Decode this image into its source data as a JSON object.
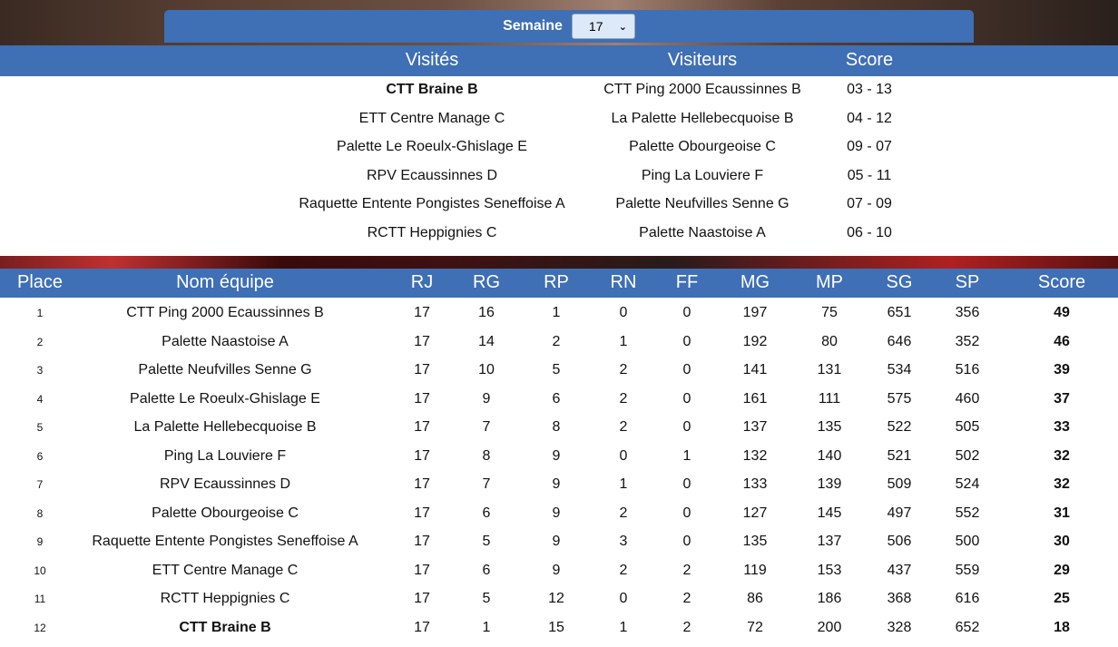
{
  "week": {
    "label": "Semaine",
    "selected": "17"
  },
  "matches": {
    "headers": {
      "home": "Visités",
      "away": "Visiteurs",
      "score": "Score"
    },
    "rows": [
      {
        "home": "CTT Braine B",
        "away": "CTT Ping 2000 Ecaussinnes B",
        "score": "03 - 13",
        "highlight": true
      },
      {
        "home": "ETT Centre Manage C",
        "away": "La Palette Hellebecquoise B",
        "score": "04 - 12"
      },
      {
        "home": "Palette Le Roeulx-Ghislage E",
        "away": "Palette Obourgeoise C",
        "score": "09 - 07"
      },
      {
        "home": "RPV Ecaussinnes D",
        "away": "Ping La Louviere F",
        "score": "05 - 11"
      },
      {
        "home": "Raquette Entente Pongistes Seneffoise A",
        "away": "Palette Neufvilles Senne G",
        "score": "07 - 09"
      },
      {
        "home": "RCTT Heppignies C",
        "away": "Palette Naastoise A",
        "score": "06 - 10"
      }
    ]
  },
  "standings": {
    "headers": {
      "place": "Place",
      "name": "Nom équipe",
      "rj": "RJ",
      "rg": "RG",
      "rp": "RP",
      "rn": "RN",
      "ff": "FF",
      "mg": "MG",
      "mp": "MP",
      "sg": "SG",
      "sp": "SP",
      "score": "Score"
    },
    "rows": [
      {
        "place": "1",
        "name": "CTT Ping 2000 Ecaussinnes B",
        "rj": "17",
        "rg": "16",
        "rp": "1",
        "rn": "0",
        "ff": "0",
        "mg": "197",
        "mp": "75",
        "sg": "651",
        "sp": "356",
        "score": "49"
      },
      {
        "place": "2",
        "name": "Palette Naastoise A",
        "rj": "17",
        "rg": "14",
        "rp": "2",
        "rn": "1",
        "ff": "0",
        "mg": "192",
        "mp": "80",
        "sg": "646",
        "sp": "352",
        "score": "46"
      },
      {
        "place": "3",
        "name": "Palette Neufvilles Senne G",
        "rj": "17",
        "rg": "10",
        "rp": "5",
        "rn": "2",
        "ff": "0",
        "mg": "141",
        "mp": "131",
        "sg": "534",
        "sp": "516",
        "score": "39"
      },
      {
        "place": "4",
        "name": "Palette Le Roeulx-Ghislage E",
        "rj": "17",
        "rg": "9",
        "rp": "6",
        "rn": "2",
        "ff": "0",
        "mg": "161",
        "mp": "111",
        "sg": "575",
        "sp": "460",
        "score": "37"
      },
      {
        "place": "5",
        "name": "La Palette Hellebecquoise B",
        "rj": "17",
        "rg": "7",
        "rp": "8",
        "rn": "2",
        "ff": "0",
        "mg": "137",
        "mp": "135",
        "sg": "522",
        "sp": "505",
        "score": "33"
      },
      {
        "place": "6",
        "name": "Ping La Louviere F",
        "rj": "17",
        "rg": "8",
        "rp": "9",
        "rn": "0",
        "ff": "1",
        "mg": "132",
        "mp": "140",
        "sg": "521",
        "sp": "502",
        "score": "32"
      },
      {
        "place": "7",
        "name": "RPV Ecaussinnes D",
        "rj": "17",
        "rg": "7",
        "rp": "9",
        "rn": "1",
        "ff": "0",
        "mg": "133",
        "mp": "139",
        "sg": "509",
        "sp": "524",
        "score": "32"
      },
      {
        "place": "8",
        "name": "Palette Obourgeoise C",
        "rj": "17",
        "rg": "6",
        "rp": "9",
        "rn": "2",
        "ff": "0",
        "mg": "127",
        "mp": "145",
        "sg": "497",
        "sp": "552",
        "score": "31"
      },
      {
        "place": "9",
        "name": "Raquette Entente Pongistes Seneffoise A",
        "rj": "17",
        "rg": "5",
        "rp": "9",
        "rn": "3",
        "ff": "0",
        "mg": "135",
        "mp": "137",
        "sg": "506",
        "sp": "500",
        "score": "30"
      },
      {
        "place": "10",
        "name": "ETT Centre Manage C",
        "rj": "17",
        "rg": "6",
        "rp": "9",
        "rn": "2",
        "ff": "2",
        "mg": "119",
        "mp": "153",
        "sg": "437",
        "sp": "559",
        "score": "29"
      },
      {
        "place": "11",
        "name": "RCTT Heppignies C",
        "rj": "17",
        "rg": "5",
        "rp": "12",
        "rn": "0",
        "ff": "2",
        "mg": "86",
        "mp": "186",
        "sg": "368",
        "sp": "616",
        "score": "25"
      },
      {
        "place": "12",
        "name": "CTT Braine B",
        "rj": "17",
        "rg": "1",
        "rp": "15",
        "rn": "1",
        "ff": "2",
        "mg": "72",
        "mp": "200",
        "sg": "328",
        "sp": "652",
        "score": "18",
        "highlight": true
      }
    ]
  },
  "colors": {
    "header_blue": "#3f6fb5",
    "select_bg": "#dde8f8"
  }
}
